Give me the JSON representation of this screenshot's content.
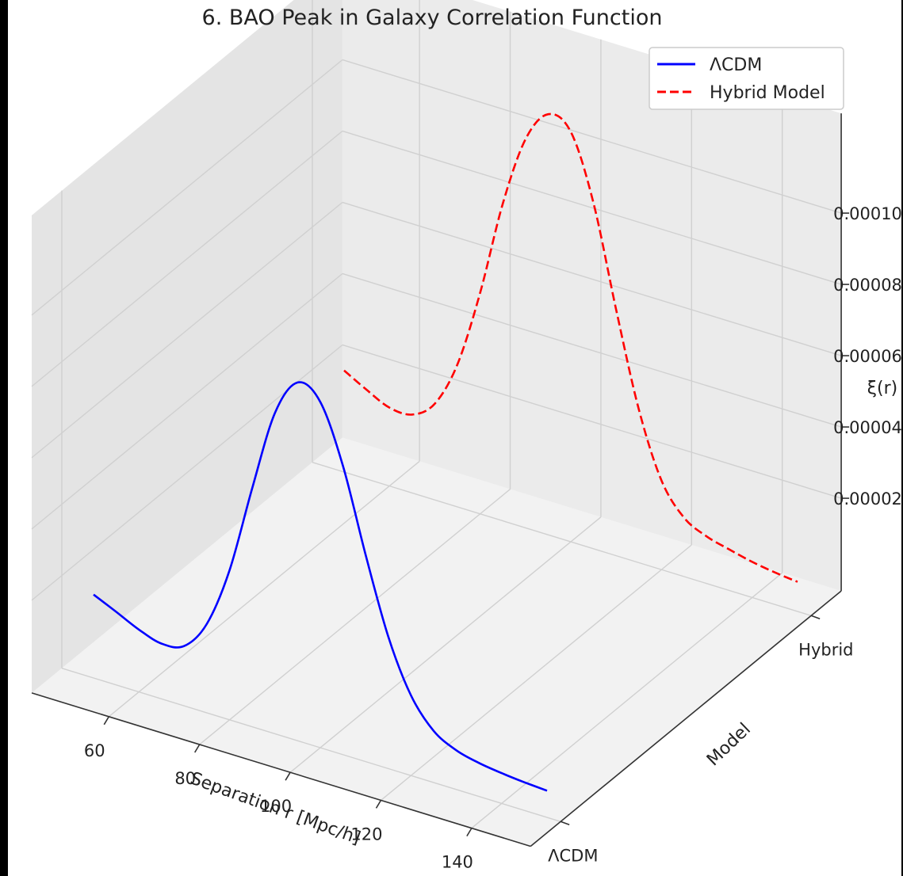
{
  "chart_data": {
    "type": "line",
    "projection": "3d",
    "title": "6. BAO Peak in Galaxy Correlation Function",
    "xlabel": "Separation r [Mpc/h]",
    "ylabel": "Model",
    "zlabel": "ξ(r)",
    "x_ticks": [
      "60",
      "80",
      "100",
      "120",
      "140"
    ],
    "y_ticks": [
      "ΛCDM",
      "Hybrid"
    ],
    "z_ticks": [
      "0.00002",
      "0.00004",
      "0.00006",
      "0.00008",
      "0.00010"
    ],
    "xlim": [
      50,
      150
    ],
    "zlim": [
      0,
      0.00011
    ],
    "grid": true,
    "legend_position": "top-right",
    "series": [
      {
        "name": "ΛCDM",
        "model_index": 0,
        "color": "#0000ff",
        "linestyle": "solid",
        "x": [
          50,
          55,
          60,
          65,
          70,
          75,
          80,
          85,
          90,
          95,
          100,
          105,
          110,
          115,
          120,
          125,
          130,
          135,
          140,
          145,
          150
        ],
        "z": [
          1.74e-05,
          1.45e-05,
          1.15e-05,
          9.5e-06,
          1.08e-05,
          1.9e-05,
          3.6e-05,
          6.1e-05,
          8.4e-05,
          9.45e-05,
          9.1e-05,
          7.5e-05,
          5.2e-05,
          3.1e-05,
          1.65e-05,
          8.5e-06,
          5e-06,
          3.4e-06,
          2.5e-06,
          1.9e-06,
          1.5e-06
        ]
      },
      {
        "name": "Hybrid Model",
        "model_index": 1,
        "color": "#ff0000",
        "linestyle": "dashed",
        "x": [
          50,
          55,
          60,
          65,
          70,
          75,
          80,
          85,
          90,
          95,
          100,
          105,
          110,
          115,
          120,
          125,
          130,
          135,
          140,
          145,
          150
        ],
        "z": [
          2.25e-05,
          1.9e-05,
          1.6e-05,
          1.6e-05,
          2.1e-05,
          3.4e-05,
          5.6e-05,
          8.3e-05,
          0.000103,
          0.000112,
          0.000109,
          9.1e-05,
          6.3e-05,
          3.7e-05,
          1.9e-05,
          1.05e-05,
          7.2e-06,
          5.5e-06,
          4e-06,
          3e-06,
          2.3e-06
        ]
      }
    ]
  }
}
